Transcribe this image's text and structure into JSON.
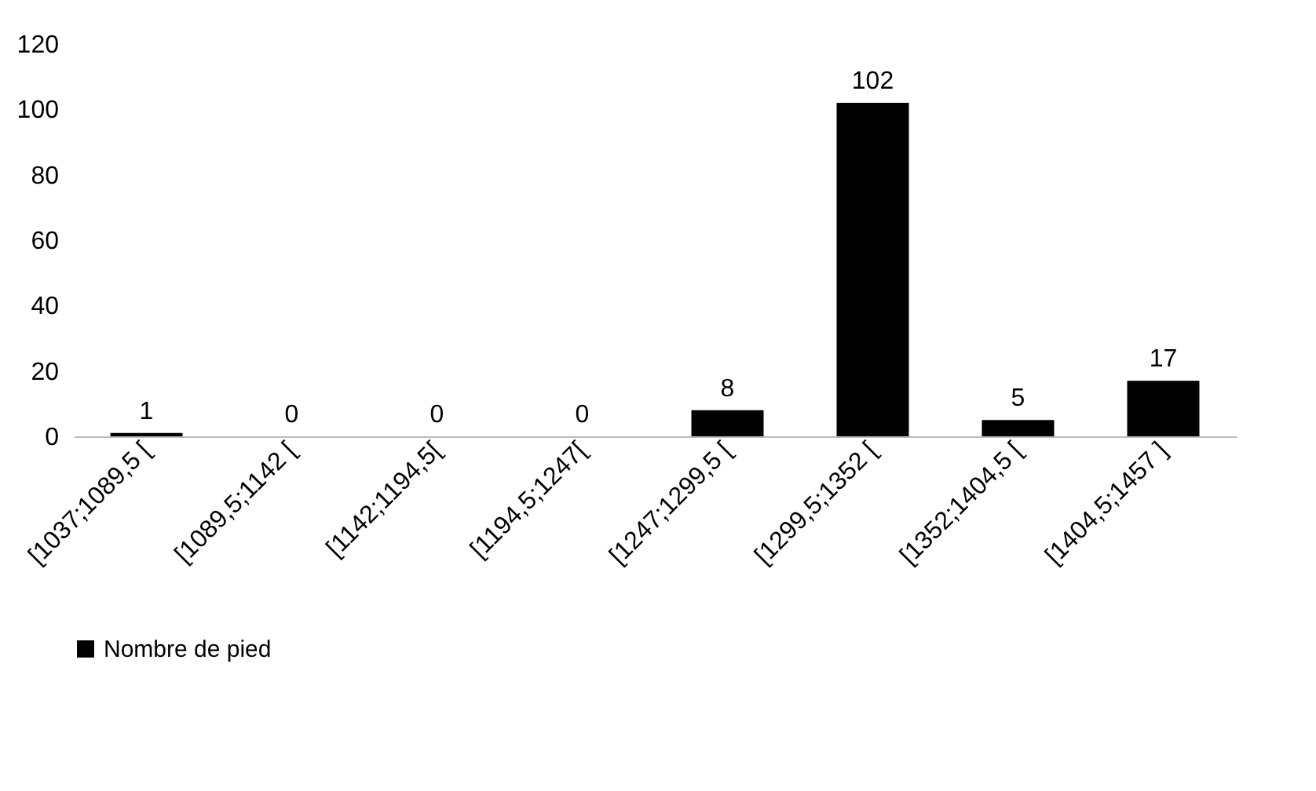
{
  "chart_data": {
    "type": "bar",
    "categories": [
      "[1037;1089,5 [",
      "[1089,5;1142 [",
      "[1142;1194,5[",
      "[1194,5;1247[",
      "[1247;1299,5 [",
      "[1299,5;1352 [",
      "[1352;1404,5  [",
      "[1404,5;1457 ]"
    ],
    "series": [
      {
        "name": "Nombre de pied",
        "color": "#000000",
        "values": [
          1,
          0,
          0,
          0,
          8,
          102,
          5,
          17
        ]
      }
    ],
    "ylim": [
      0,
      120
    ],
    "yticks": [
      0,
      20,
      40,
      60,
      80,
      100,
      120
    ],
    "grid": false,
    "data_labels": true,
    "legend": "bottom"
  }
}
